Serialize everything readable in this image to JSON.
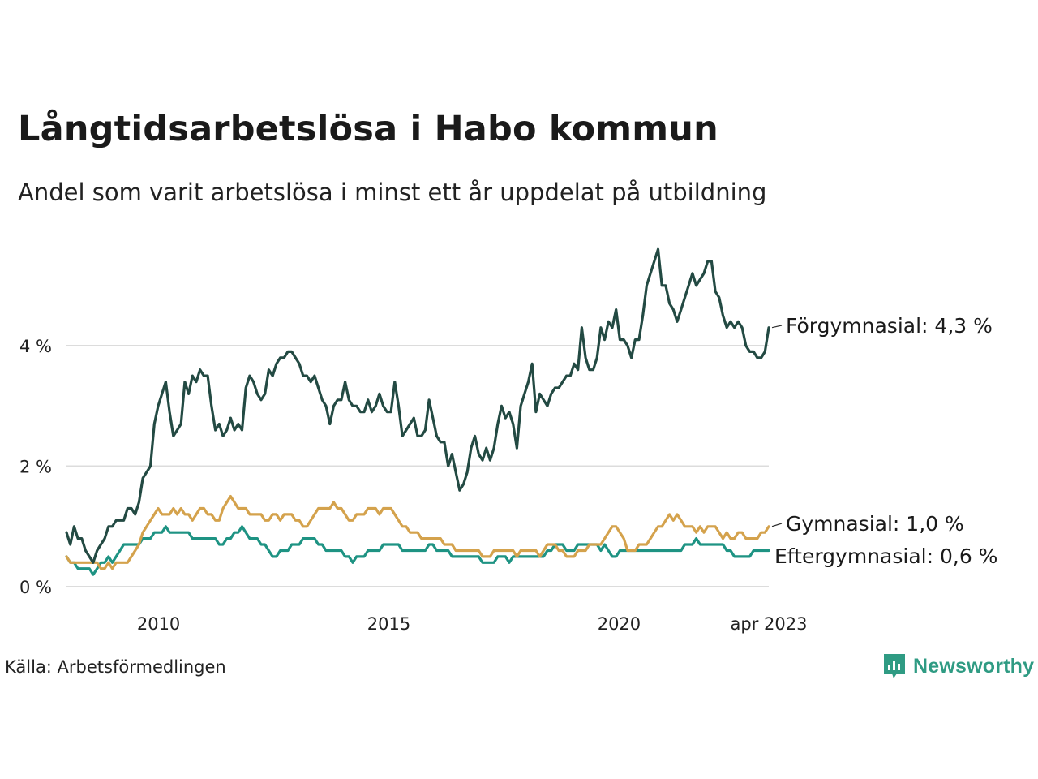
{
  "header": {
    "title": "Långtidsarbetslösa i Habo kommun",
    "subtitle": "Andel som varit arbetslösa i minst ett år uppdelat på utbildning"
  },
  "footer": {
    "source": "Källa: Arbetsförmedlingen",
    "brand": "Newsworthy",
    "brand_icon": "chart-icon",
    "brand_color": "#2f9b83"
  },
  "chart_data": {
    "type": "line",
    "x_start": "2008-01",
    "x_end": "2023-04",
    "x_step": "month",
    "x_ticks": [
      {
        "value": "2010-01",
        "label": "2010"
      },
      {
        "value": "2015-01",
        "label": "2015"
      },
      {
        "value": "2020-01",
        "label": "2020"
      },
      {
        "value": "2023-04",
        "label": "apr 2023"
      }
    ],
    "ylim": [
      0,
      5.8
    ],
    "y_ticks": [
      {
        "value": 0,
        "label": "0 %"
      },
      {
        "value": 2,
        "label": "2 %"
      },
      {
        "value": 4,
        "label": "4 %"
      }
    ],
    "grid": true,
    "legend": "direct-labels-right",
    "series": [
      {
        "name": "Förgymnasial",
        "end_label": "Förgymnasial: 4,3 %",
        "color": "#234a43",
        "values": [
          0.9,
          0.7,
          1.0,
          0.8,
          0.8,
          0.6,
          0.5,
          0.4,
          0.6,
          0.7,
          0.8,
          1.0,
          1.0,
          1.1,
          1.1,
          1.1,
          1.3,
          1.3,
          1.2,
          1.4,
          1.8,
          1.9,
          2.0,
          2.7,
          3.0,
          3.2,
          3.4,
          2.9,
          2.5,
          2.6,
          2.7,
          3.4,
          3.2,
          3.5,
          3.4,
          3.6,
          3.5,
          3.5,
          3.0,
          2.6,
          2.7,
          2.5,
          2.6,
          2.8,
          2.6,
          2.7,
          2.6,
          3.3,
          3.5,
          3.4,
          3.2,
          3.1,
          3.2,
          3.6,
          3.5,
          3.7,
          3.8,
          3.8,
          3.9,
          3.9,
          3.8,
          3.7,
          3.5,
          3.5,
          3.4,
          3.5,
          3.3,
          3.1,
          3.0,
          2.7,
          3.0,
          3.1,
          3.1,
          3.4,
          3.1,
          3.0,
          3.0,
          2.9,
          2.9,
          3.1,
          2.9,
          3.0,
          3.2,
          3.0,
          2.9,
          2.9,
          3.4,
          3.0,
          2.5,
          2.6,
          2.7,
          2.8,
          2.5,
          2.5,
          2.6,
          3.1,
          2.8,
          2.5,
          2.4,
          2.4,
          2.0,
          2.2,
          1.9,
          1.6,
          1.7,
          1.9,
          2.3,
          2.5,
          2.2,
          2.1,
          2.3,
          2.1,
          2.3,
          2.7,
          3.0,
          2.8,
          2.9,
          2.7,
          2.3,
          3.0,
          3.2,
          3.4,
          3.7,
          2.9,
          3.2,
          3.1,
          3.0,
          3.2,
          3.3,
          3.3,
          3.4,
          3.5,
          3.5,
          3.7,
          3.6,
          4.3,
          3.8,
          3.6,
          3.6,
          3.8,
          4.3,
          4.1,
          4.4,
          4.3,
          4.6,
          4.1,
          4.1,
          4.0,
          3.8,
          4.1,
          4.1,
          4.5,
          5.0,
          5.2,
          5.4,
          5.6,
          5.0,
          5.0,
          4.7,
          4.6,
          4.4,
          4.6,
          4.8,
          5.0,
          5.2,
          5.0,
          5.1,
          5.2,
          5.4,
          5.4,
          4.9,
          4.8,
          4.5,
          4.3,
          4.4,
          4.3,
          4.4,
          4.3,
          4.0,
          3.9,
          3.9,
          3.8,
          3.8,
          3.9,
          4.3
        ]
      },
      {
        "name": "Gymnasial",
        "end_label": "Gymnasial: 1,0 %",
        "color": "#d4a24c",
        "values": [
          0.5,
          0.4,
          0.4,
          0.4,
          0.4,
          0.4,
          0.4,
          0.4,
          0.4,
          0.3,
          0.3,
          0.4,
          0.3,
          0.4,
          0.4,
          0.4,
          0.4,
          0.5,
          0.6,
          0.7,
          0.9,
          1.0,
          1.1,
          1.2,
          1.3,
          1.2,
          1.2,
          1.2,
          1.3,
          1.2,
          1.3,
          1.2,
          1.2,
          1.1,
          1.2,
          1.3,
          1.3,
          1.2,
          1.2,
          1.1,
          1.1,
          1.3,
          1.4,
          1.5,
          1.4,
          1.3,
          1.3,
          1.3,
          1.2,
          1.2,
          1.2,
          1.2,
          1.1,
          1.1,
          1.2,
          1.2,
          1.1,
          1.2,
          1.2,
          1.2,
          1.1,
          1.1,
          1.0,
          1.0,
          1.1,
          1.2,
          1.3,
          1.3,
          1.3,
          1.3,
          1.4,
          1.3,
          1.3,
          1.2,
          1.1,
          1.1,
          1.2,
          1.2,
          1.2,
          1.3,
          1.3,
          1.3,
          1.2,
          1.3,
          1.3,
          1.3,
          1.2,
          1.1,
          1.0,
          1.0,
          0.9,
          0.9,
          0.9,
          0.8,
          0.8,
          0.8,
          0.8,
          0.8,
          0.8,
          0.7,
          0.7,
          0.7,
          0.6,
          0.6,
          0.6,
          0.6,
          0.6,
          0.6,
          0.6,
          0.5,
          0.5,
          0.5,
          0.6,
          0.6,
          0.6,
          0.6,
          0.6,
          0.6,
          0.5,
          0.6,
          0.6,
          0.6,
          0.6,
          0.6,
          0.5,
          0.6,
          0.7,
          0.7,
          0.7,
          0.6,
          0.6,
          0.5,
          0.5,
          0.5,
          0.6,
          0.6,
          0.6,
          0.7,
          0.7,
          0.7,
          0.7,
          0.8,
          0.9,
          1.0,
          1.0,
          0.9,
          0.8,
          0.6,
          0.6,
          0.6,
          0.7,
          0.7,
          0.7,
          0.8,
          0.9,
          1.0,
          1.0,
          1.1,
          1.2,
          1.1,
          1.2,
          1.1,
          1.0,
          1.0,
          1.0,
          0.9,
          1.0,
          0.9,
          1.0,
          1.0,
          1.0,
          0.9,
          0.8,
          0.9,
          0.8,
          0.8,
          0.9,
          0.9,
          0.8,
          0.8,
          0.8,
          0.8,
          0.9,
          0.9,
          1.0
        ]
      },
      {
        "name": "Eftergymnasial",
        "end_label": "Eftergymnasial: 0,6 %",
        "color": "#1e9383",
        "values": [
          0.5,
          0.4,
          0.4,
          0.3,
          0.3,
          0.3,
          0.3,
          0.2,
          0.3,
          0.4,
          0.4,
          0.5,
          0.4,
          0.5,
          0.6,
          0.7,
          0.7,
          0.7,
          0.7,
          0.7,
          0.8,
          0.8,
          0.8,
          0.9,
          0.9,
          0.9,
          1.0,
          0.9,
          0.9,
          0.9,
          0.9,
          0.9,
          0.9,
          0.8,
          0.8,
          0.8,
          0.8,
          0.8,
          0.8,
          0.8,
          0.7,
          0.7,
          0.8,
          0.8,
          0.9,
          0.9,
          1.0,
          0.9,
          0.8,
          0.8,
          0.8,
          0.7,
          0.7,
          0.6,
          0.5,
          0.5,
          0.6,
          0.6,
          0.6,
          0.7,
          0.7,
          0.7,
          0.8,
          0.8,
          0.8,
          0.8,
          0.7,
          0.7,
          0.6,
          0.6,
          0.6,
          0.6,
          0.6,
          0.5,
          0.5,
          0.4,
          0.5,
          0.5,
          0.5,
          0.6,
          0.6,
          0.6,
          0.6,
          0.7,
          0.7,
          0.7,
          0.7,
          0.7,
          0.6,
          0.6,
          0.6,
          0.6,
          0.6,
          0.6,
          0.6,
          0.7,
          0.7,
          0.6,
          0.6,
          0.6,
          0.6,
          0.5,
          0.5,
          0.5,
          0.5,
          0.5,
          0.5,
          0.5,
          0.5,
          0.4,
          0.4,
          0.4,
          0.4,
          0.5,
          0.5,
          0.5,
          0.4,
          0.5,
          0.5,
          0.5,
          0.5,
          0.5,
          0.5,
          0.5,
          0.5,
          0.5,
          0.6,
          0.6,
          0.7,
          0.7,
          0.7,
          0.6,
          0.6,
          0.6,
          0.7,
          0.7,
          0.7,
          0.7,
          0.7,
          0.7,
          0.6,
          0.7,
          0.6,
          0.5,
          0.5,
          0.6,
          0.6,
          0.6,
          0.6,
          0.6,
          0.6,
          0.6,
          0.6,
          0.6,
          0.6,
          0.6,
          0.6,
          0.6,
          0.6,
          0.6,
          0.6,
          0.6,
          0.7,
          0.7,
          0.7,
          0.8,
          0.7,
          0.7,
          0.7,
          0.7,
          0.7,
          0.7,
          0.7,
          0.6,
          0.6,
          0.5,
          0.5,
          0.5,
          0.5,
          0.5,
          0.6,
          0.6,
          0.6,
          0.6,
          0.6
        ]
      }
    ]
  }
}
